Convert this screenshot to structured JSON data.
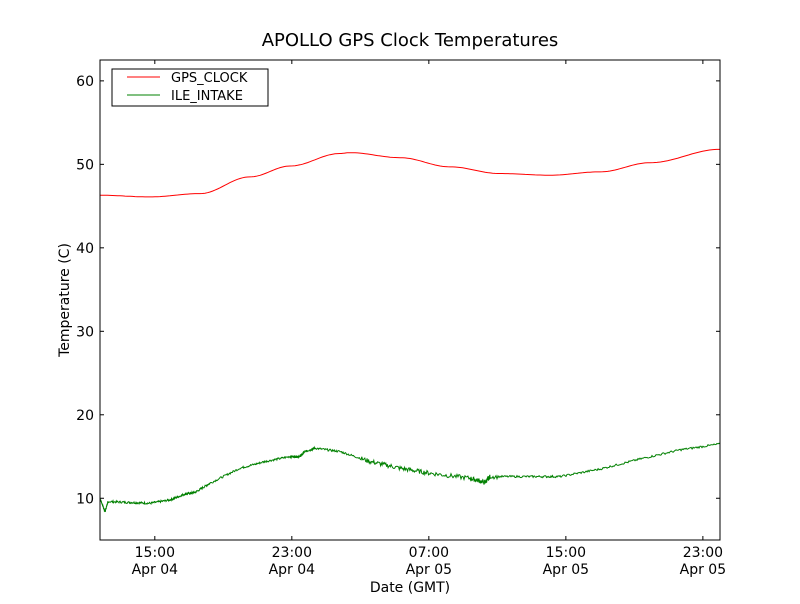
{
  "chart_data": {
    "type": "line",
    "title": "APOLLO GPS Clock Temperatures",
    "xlabel": "Date (GMT)",
    "ylabel": "Temperature (C)",
    "x_units": "hours since Apr 04 00:00 GMT",
    "xlim": [
      11.8,
      48.0
    ],
    "ylim": [
      5,
      62.5
    ],
    "grid": false,
    "legend_position": "top-left",
    "x_ticks": [
      {
        "value": 15,
        "time": "15:00",
        "date": "Apr 04"
      },
      {
        "value": 23,
        "time": "23:00",
        "date": "Apr 04"
      },
      {
        "value": 31,
        "time": "07:00",
        "date": "Apr 05"
      },
      {
        "value": 39,
        "time": "15:00",
        "date": "Apr 05"
      },
      {
        "value": 47,
        "time": "23:00",
        "date": "Apr 05"
      }
    ],
    "y_ticks": [
      10,
      20,
      30,
      40,
      50,
      60
    ],
    "series": [
      {
        "name": "GPS_CLOCK",
        "color": "#ff0000",
        "noisy": false,
        "x": [
          11.8,
          14.72,
          17.64,
          20.56,
          22.9,
          25.81,
          26.4,
          29.32,
          32.24,
          35.16,
          38.08,
          41.0,
          43.91,
          48.0
        ],
        "y": [
          46.3,
          46.1,
          46.5,
          48.5,
          49.8,
          51.3,
          51.4,
          50.8,
          49.7,
          48.9,
          48.7,
          49.1,
          50.2,
          51.8
        ]
      },
      {
        "name": "ILE_INTAKE",
        "color": "#008000",
        "noisy": true,
        "x": [
          11.8,
          12.09,
          12.27,
          13.55,
          14.72,
          15.89,
          16.76,
          17.35,
          18.22,
          19.97,
          21.43,
          22.9,
          23.48,
          23.77,
          24.35,
          25.81,
          27.57,
          29.32,
          31.07,
          33.4,
          34.28,
          34.57,
          36.91,
          38.66,
          41.0,
          43.33,
          45.67,
          48.0
        ],
        "y": [
          10.0,
          8.4,
          9.6,
          9.5,
          9.4,
          9.8,
          10.5,
          10.7,
          11.8,
          13.6,
          14.4,
          15.0,
          15.0,
          15.6,
          16.0,
          15.6,
          14.4,
          13.6,
          13.0,
          12.4,
          11.9,
          12.6,
          12.6,
          12.6,
          13.5,
          14.7,
          15.8,
          16.5
        ]
      }
    ]
  }
}
